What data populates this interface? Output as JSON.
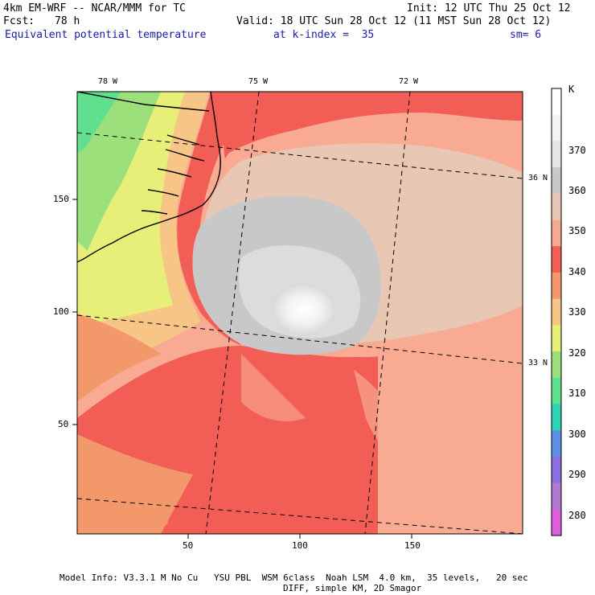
{
  "header": {
    "model": "4km EM-WRF -- NCAR/MMM for TC",
    "init": "Init: 12 UTC Thu 25 Oct 12",
    "fcst_label": "Fcst:",
    "fcst_value": "78 h",
    "valid": "Valid: 18 UTC Sun 28 Oct 12 (11 MST Sun 28 Oct 12)",
    "field": "Equivalent potential temperature",
    "level": "at k-index =  35",
    "smooth": "sm= 6"
  },
  "axes": {
    "lon_labels": [
      "78 W",
      "75 W",
      "72 W"
    ],
    "lat_labels": [
      "36 N",
      "33 N"
    ],
    "x_ticks": [
      "50",
      "100",
      "150"
    ],
    "y_ticks": [
      "150",
      "100",
      "50"
    ]
  },
  "colorbar": {
    "unit": "K",
    "labels": [
      "370",
      "360",
      "350",
      "340",
      "330",
      "320",
      "310",
      "300",
      "290",
      "280"
    ],
    "colors": [
      "#ffffff",
      "#f3f3f3",
      "#e6e6e6",
      "#c8c8c8",
      "#e8c8b4",
      "#f7a890",
      "#f25d55",
      "#f2986a",
      "#f7c585",
      "#e8ef79",
      "#9be07a",
      "#5ee08f",
      "#2dd3b5",
      "#5b8fe6",
      "#8a6fe0",
      "#b07ad0",
      "#dd5fdd"
    ]
  },
  "footer": {
    "line1": "Model Info: V3.3.1 M No Cu   YSU PBL  WSM 6class  Noah LSM  4.0 km,  35 levels,   20 sec",
    "line2": "DIFF, simple KM, 2D Smagor"
  }
}
